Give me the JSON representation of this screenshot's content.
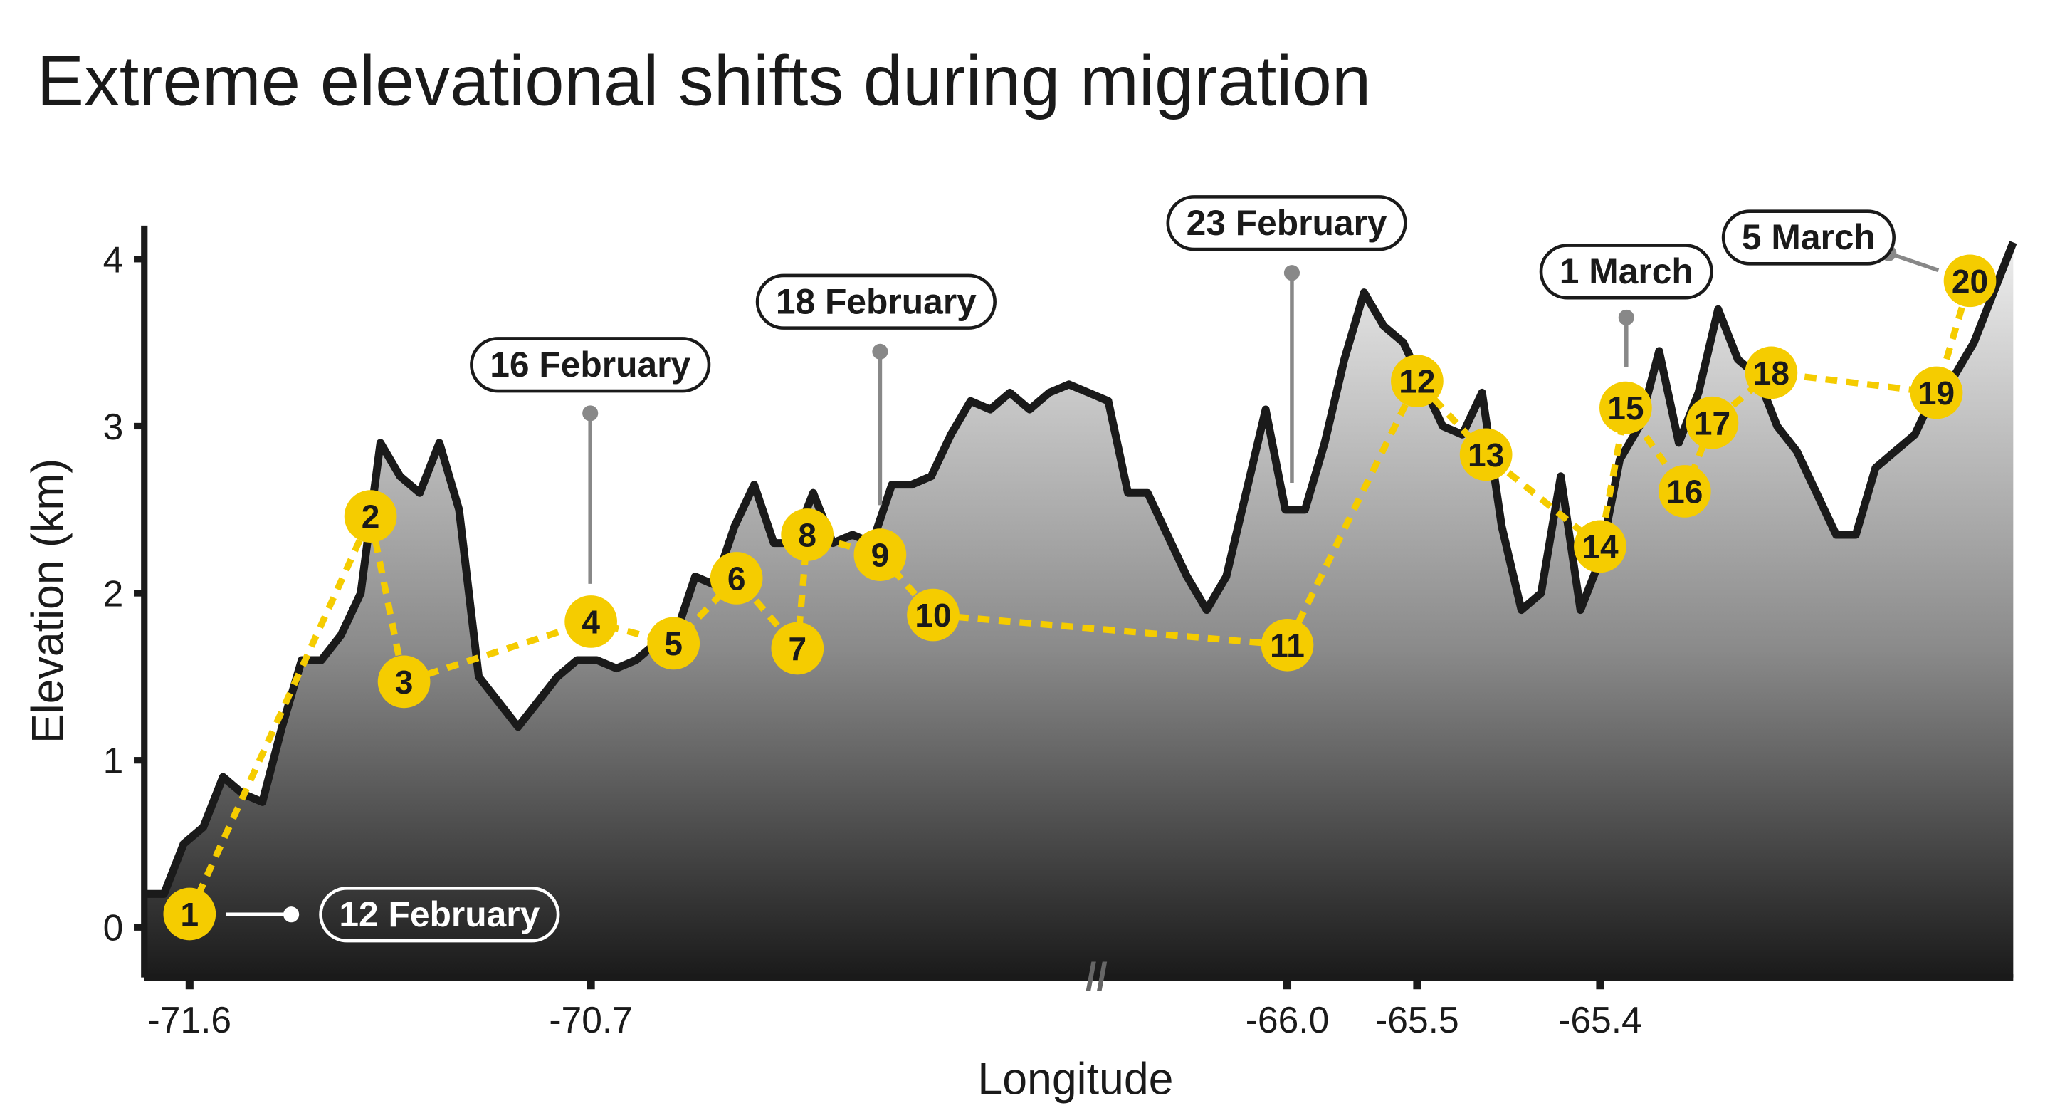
{
  "chart_data": {
    "type": "line",
    "title": "Extreme elevational shifts during migration",
    "ylabel": "Elevation (km)",
    "xlabel": "Longitude",
    "ylim": [
      -0.3,
      4.2
    ],
    "yticks": [
      0,
      1,
      2,
      3,
      4
    ],
    "xticks": [
      {
        "point": 1,
        "label": "-71.6"
      },
      {
        "point": 4,
        "label": "-70.7"
      },
      {
        "point": 11,
        "label": "-66.0"
      },
      {
        "point": 12,
        "label": "-65.5"
      },
      {
        "point": 14,
        "label": "-65.4"
      }
    ],
    "profile": {
      "color": "#1a1a1a",
      "values": [
        0.2,
        0.2,
        0.5,
        0.6,
        0.9,
        0.8,
        0.75,
        1.2,
        1.6,
        1.6,
        1.75,
        2.0,
        2.9,
        2.7,
        2.6,
        2.9,
        2.5,
        1.5,
        1.35,
        1.2,
        1.35,
        1.5,
        1.6,
        1.6,
        1.55,
        1.6,
        1.7,
        1.75,
        2.1,
        2.05,
        2.4,
        2.65,
        2.3,
        2.3,
        2.6,
        2.3,
        2.35,
        2.3,
        2.65,
        2.65,
        2.7,
        2.95,
        3.15,
        3.1,
        3.2,
        3.1,
        3.2,
        3.25,
        3.2,
        3.15,
        2.6,
        2.6,
        2.35,
        2.1,
        1.9,
        2.1,
        2.6,
        3.1,
        2.5,
        2.5,
        2.9,
        3.4,
        3.8,
        3.6,
        3.5,
        3.25,
        3.0,
        2.95,
        3.2,
        2.4,
        1.9,
        2.0,
        2.7,
        1.9,
        2.2,
        2.8,
        3.0,
        3.45,
        2.9,
        3.2,
        3.7,
        3.4,
        3.3,
        3.0,
        2.85,
        2.6,
        2.35,
        2.35,
        2.75,
        2.85,
        2.95,
        3.2,
        3.3,
        3.5,
        3.8,
        4.1
      ]
    },
    "points": {
      "color": "#f5cc00",
      "labels": [
        "1",
        "2",
        "3",
        "4",
        "5",
        "6",
        "7",
        "8",
        "9",
        "10",
        "11",
        "12",
        "13",
        "14",
        "15",
        "16",
        "17",
        "18",
        "19",
        "20"
      ],
      "x": [
        2.3,
        11.5,
        13.2,
        22.7,
        26.9,
        30.1,
        33.2,
        33.7,
        37.4,
        40.1,
        58.1,
        64.7,
        68.2,
        74.0,
        75.3,
        78.3,
        79.7,
        82.7,
        91.1,
        92.8
      ],
      "values": [
        0.08,
        2.46,
        1.47,
        1.83,
        1.7,
        2.09,
        1.67,
        2.35,
        2.23,
        1.87,
        1.69,
        3.27,
        2.83,
        2.28,
        3.11,
        2.61,
        3.02,
        3.32,
        3.2,
        3.87
      ]
    },
    "annotations": [
      "12 February",
      "16 February",
      "18 February",
      "23 February",
      "1 March",
      "5 March"
    ]
  }
}
